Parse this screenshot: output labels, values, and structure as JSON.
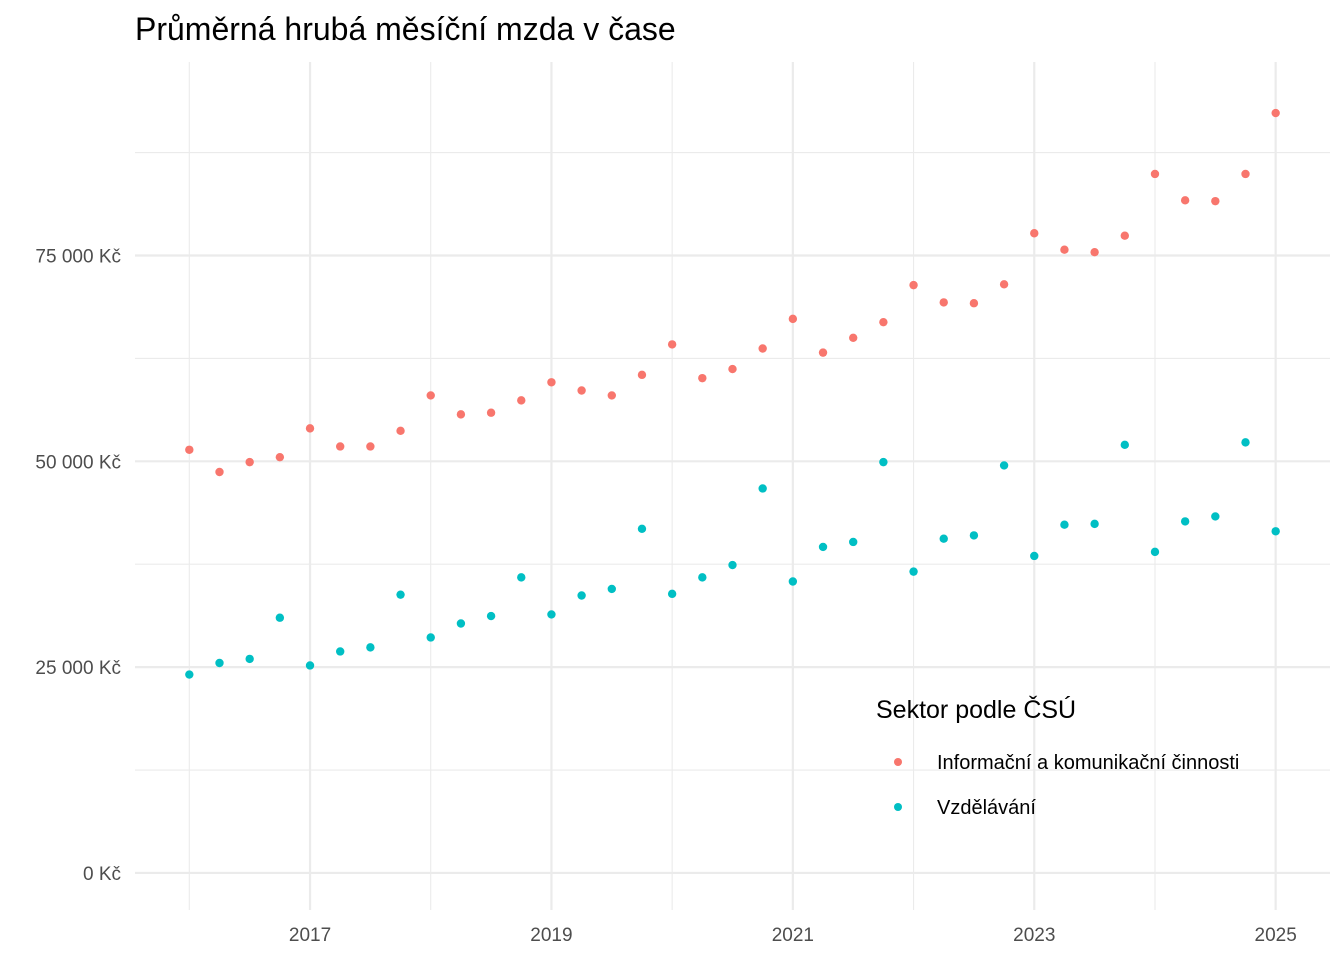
{
  "chart_data": {
    "type": "scatter",
    "title": "Průměrná hrubá měsíční mzda v čase",
    "xlabel": "",
    "ylabel": "",
    "xlim": [
      2015.55,
      2025.45
    ],
    "ylim": [
      -4500,
      98500
    ],
    "grid": true,
    "x_ticks": [
      2017,
      2019,
      2021,
      2023,
      2025
    ],
    "x_tick_labels": [
      "2017",
      "2019",
      "2021",
      "2023",
      "2025"
    ],
    "x_minor_ticks": [
      2016,
      2018,
      2020,
      2022,
      2024
    ],
    "y_ticks": [
      0,
      25000,
      50000,
      75000
    ],
    "y_tick_labels": [
      "0 Kč",
      "25 000 Kč",
      "50 000 Kč",
      "75 000 Kč"
    ],
    "y_minor_ticks": [
      12500,
      37500,
      62500,
      87500
    ],
    "x": [
      2016.0,
      2016.25,
      2016.5,
      2016.75,
      2017.0,
      2017.25,
      2017.5,
      2017.75,
      2018.0,
      2018.25,
      2018.5,
      2018.75,
      2019.0,
      2019.25,
      2019.5,
      2019.75,
      2020.0,
      2020.25,
      2020.5,
      2020.75,
      2021.0,
      2021.25,
      2021.5,
      2021.75,
      2022.0,
      2022.25,
      2022.5,
      2022.75,
      2023.0,
      2023.25,
      2023.5,
      2023.75,
      2024.0,
      2024.25,
      2024.5,
      2024.75,
      2025.0
    ],
    "legend": {
      "title": "Sektor podle ČSÚ",
      "position": "bottom-right-inside"
    },
    "series": [
      {
        "name": "Informační a komunikační činnosti",
        "color": "#F8766D",
        "values": [
          51400,
          48700,
          49900,
          50500,
          54000,
          51800,
          51800,
          53700,
          58000,
          55700,
          55900,
          57400,
          59600,
          58600,
          58000,
          60500,
          64200,
          60100,
          61200,
          63700,
          67300,
          63200,
          65000,
          66900,
          71400,
          69300,
          69200,
          71500,
          77700,
          75700,
          75400,
          77400,
          84900,
          81700,
          81600,
          84900,
          92300
        ]
      },
      {
        "name": "Vzdělávání",
        "color": "#00BFC4",
        "values": [
          24100,
          25500,
          26000,
          31000,
          25200,
          26900,
          27400,
          33800,
          28600,
          30300,
          31200,
          35900,
          31400,
          33700,
          34500,
          41800,
          33900,
          35900,
          37400,
          46700,
          35400,
          39600,
          40200,
          49900,
          36600,
          40600,
          41000,
          49500,
          38500,
          42300,
          42400,
          52000,
          39000,
          42700,
          43300,
          52300,
          41500
        ]
      }
    ]
  }
}
